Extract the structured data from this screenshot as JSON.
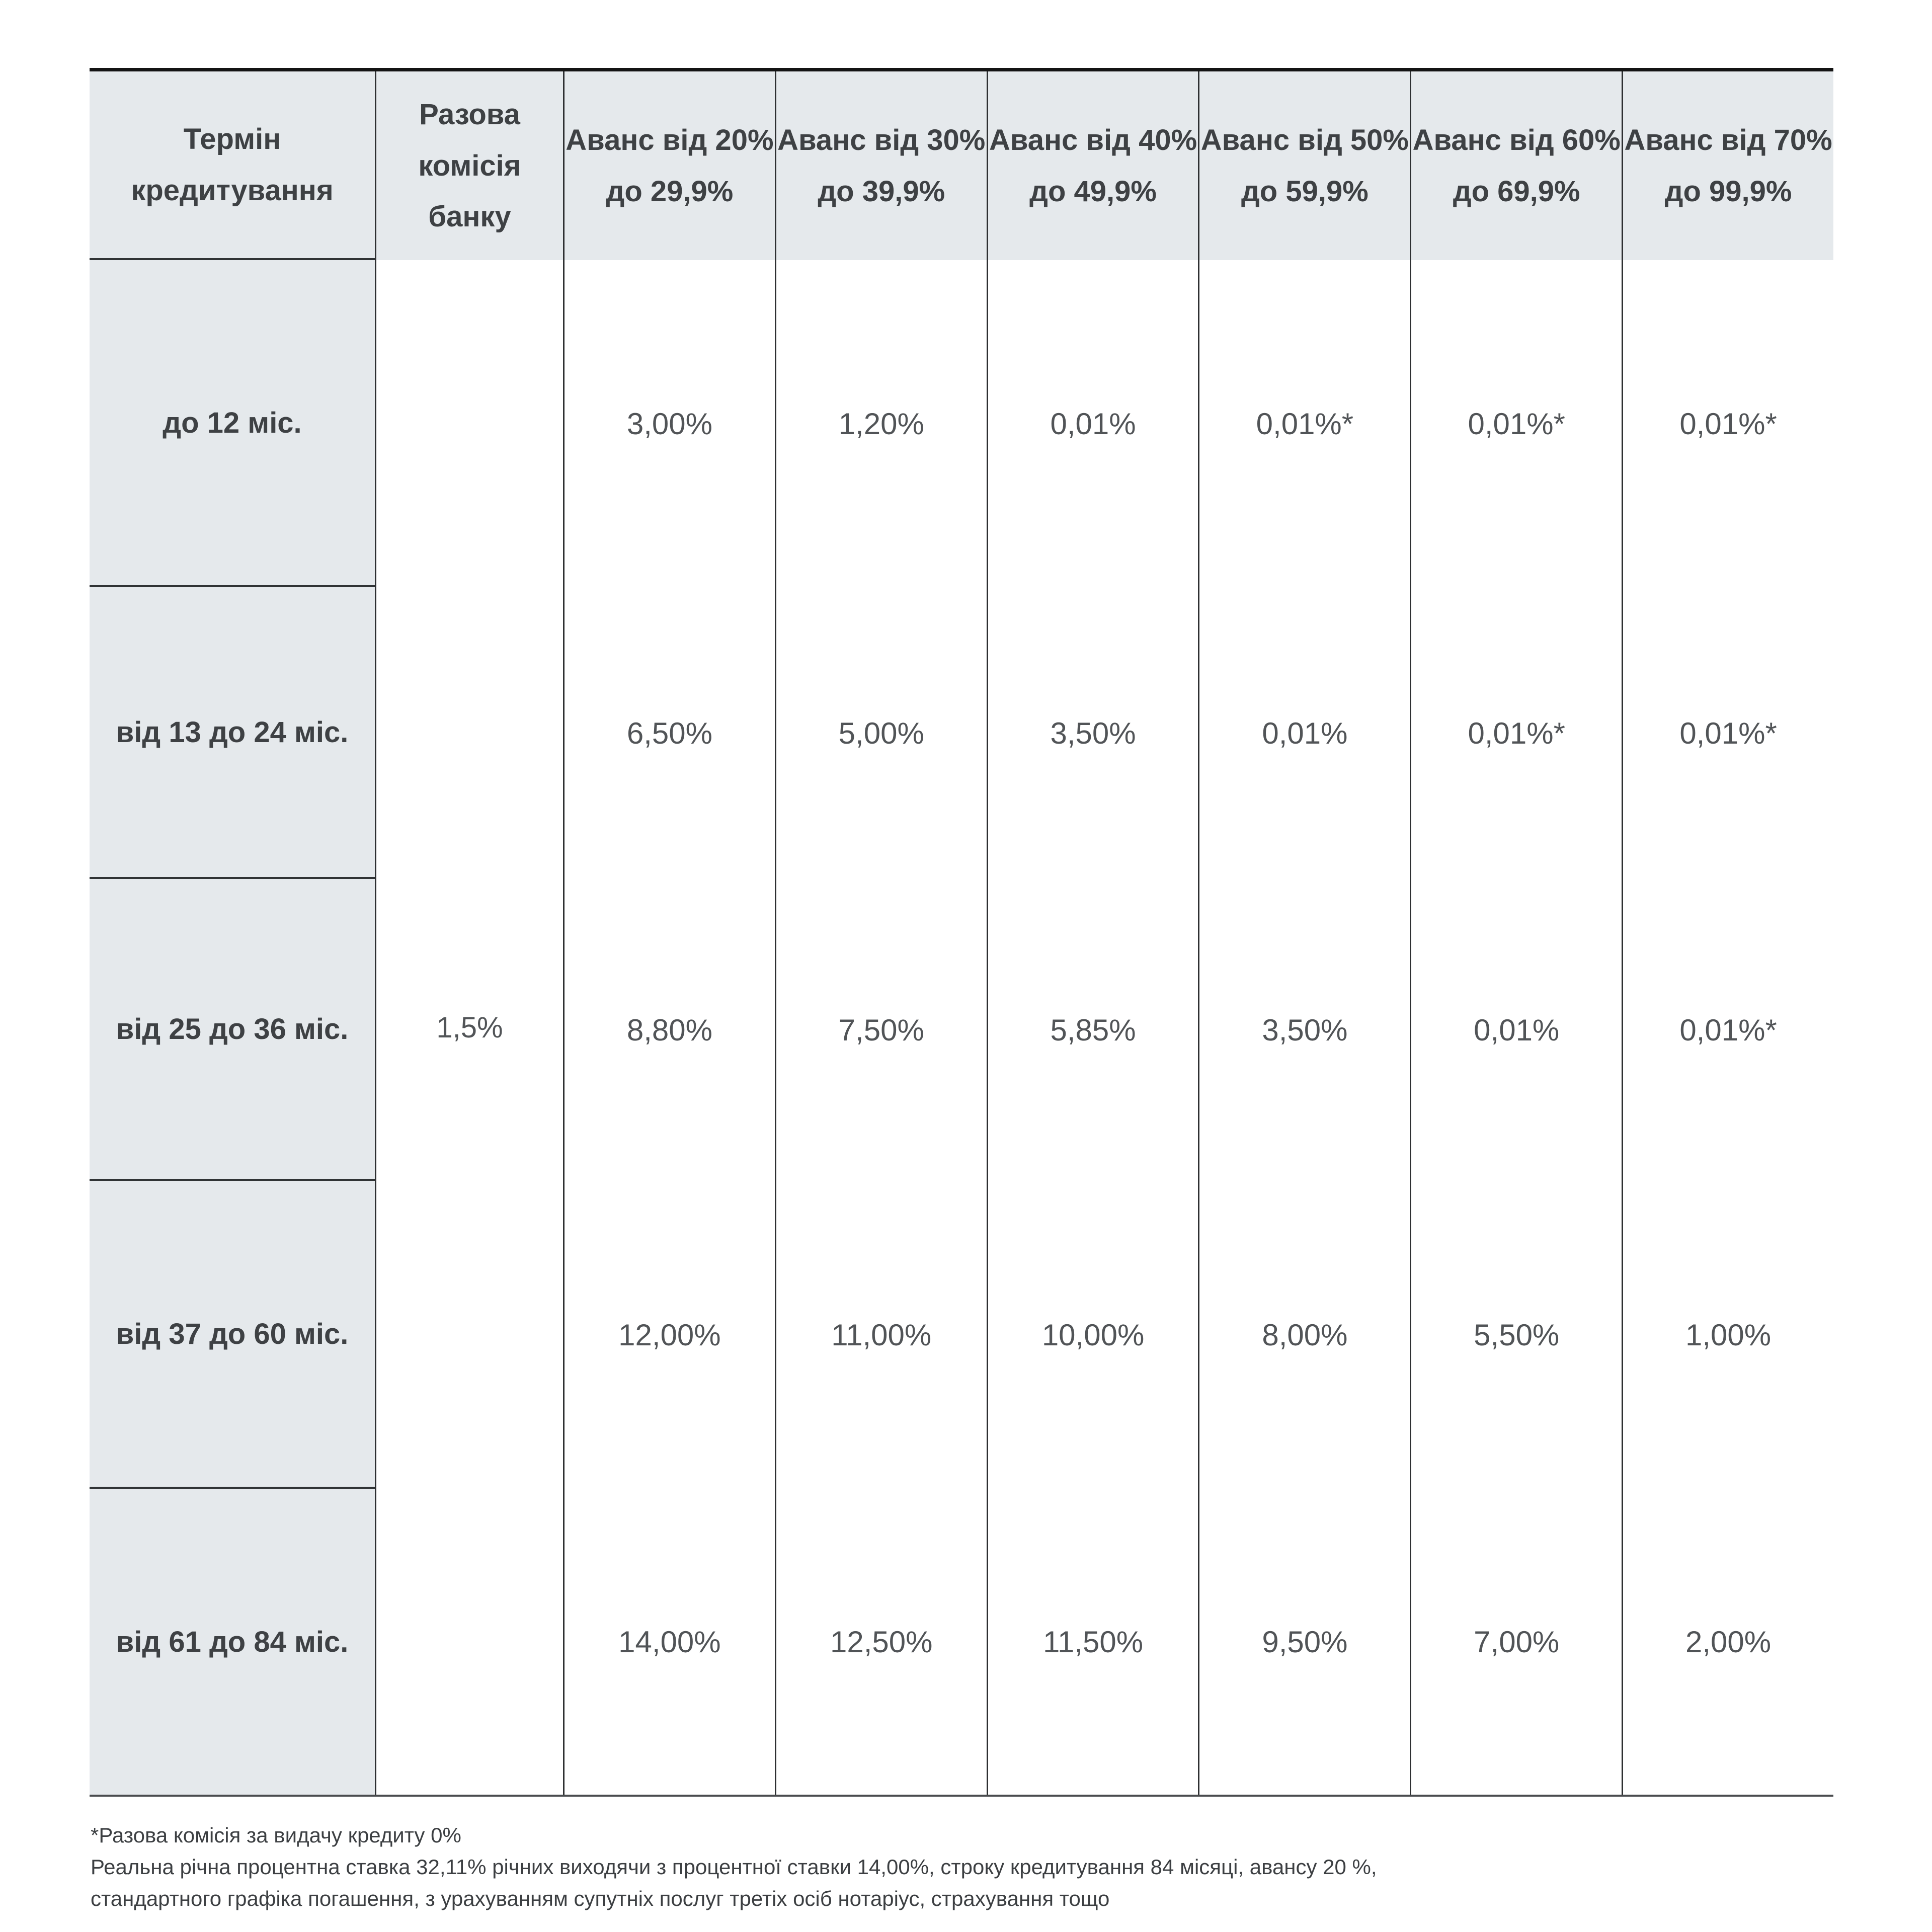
{
  "table": {
    "header": {
      "term": "Термін\nкредитування",
      "commission": "Разова\nкомісія банку",
      "advance": [
        "Аванс від 20%\nдо 29,9%",
        "Аванс від 30%\nдо 39,9%",
        "Аванс від 40%\nдо 49,9%",
        "Аванс від 50%\nдо 59,9%",
        "Аванс від 60%\nдо 69,9%",
        "Аванс від 70%\nдо 99,9%"
      ]
    },
    "commission_value": "1,5%",
    "rows": [
      {
        "label": "до 12 міс.",
        "values": [
          "3,00%",
          "1,20%",
          "0,01%",
          "0,01%*",
          "0,01%*",
          "0,01%*"
        ]
      },
      {
        "label": "від 13 до 24 міс.",
        "values": [
          "6,50%",
          "5,00%",
          "3,50%",
          "0,01%",
          "0,01%*",
          "0,01%*"
        ]
      },
      {
        "label": "від 25 до 36 міс.",
        "values": [
          "8,80%",
          "7,50%",
          "5,85%",
          "3,50%",
          "0,01%",
          "0,01%*"
        ]
      },
      {
        "label": "від 37 до 60 міс.",
        "values": [
          "12,00%",
          "11,00%",
          "10,00%",
          "8,00%",
          "5,50%",
          "1,00%"
        ]
      },
      {
        "label": "від 61 до 84 міс.",
        "values": [
          "14,00%",
          "12,50%",
          "11,50%",
          "9,50%",
          "7,00%",
          "2,00%"
        ]
      }
    ],
    "footnotes": [
      "*Разова комісія за видачу кредиту 0%",
      "Реальна річна процентна ставка 32,11% річних виходячи з процентної ставки 14,00%, строку кредитування 84 місяці, авансу 20 %,",
      "стандартного графіка погашення, з урахуванням супутніх послуг третіх осіб нотаріус, страхування тощо"
    ]
  },
  "colors": {
    "header_bg": "#e5e9ec",
    "border_vertical": "#2e3032",
    "border_top": "#141414",
    "border_bottom": "#494b4e",
    "text_headers": "#3e4144",
    "text_values": "#515457"
  }
}
